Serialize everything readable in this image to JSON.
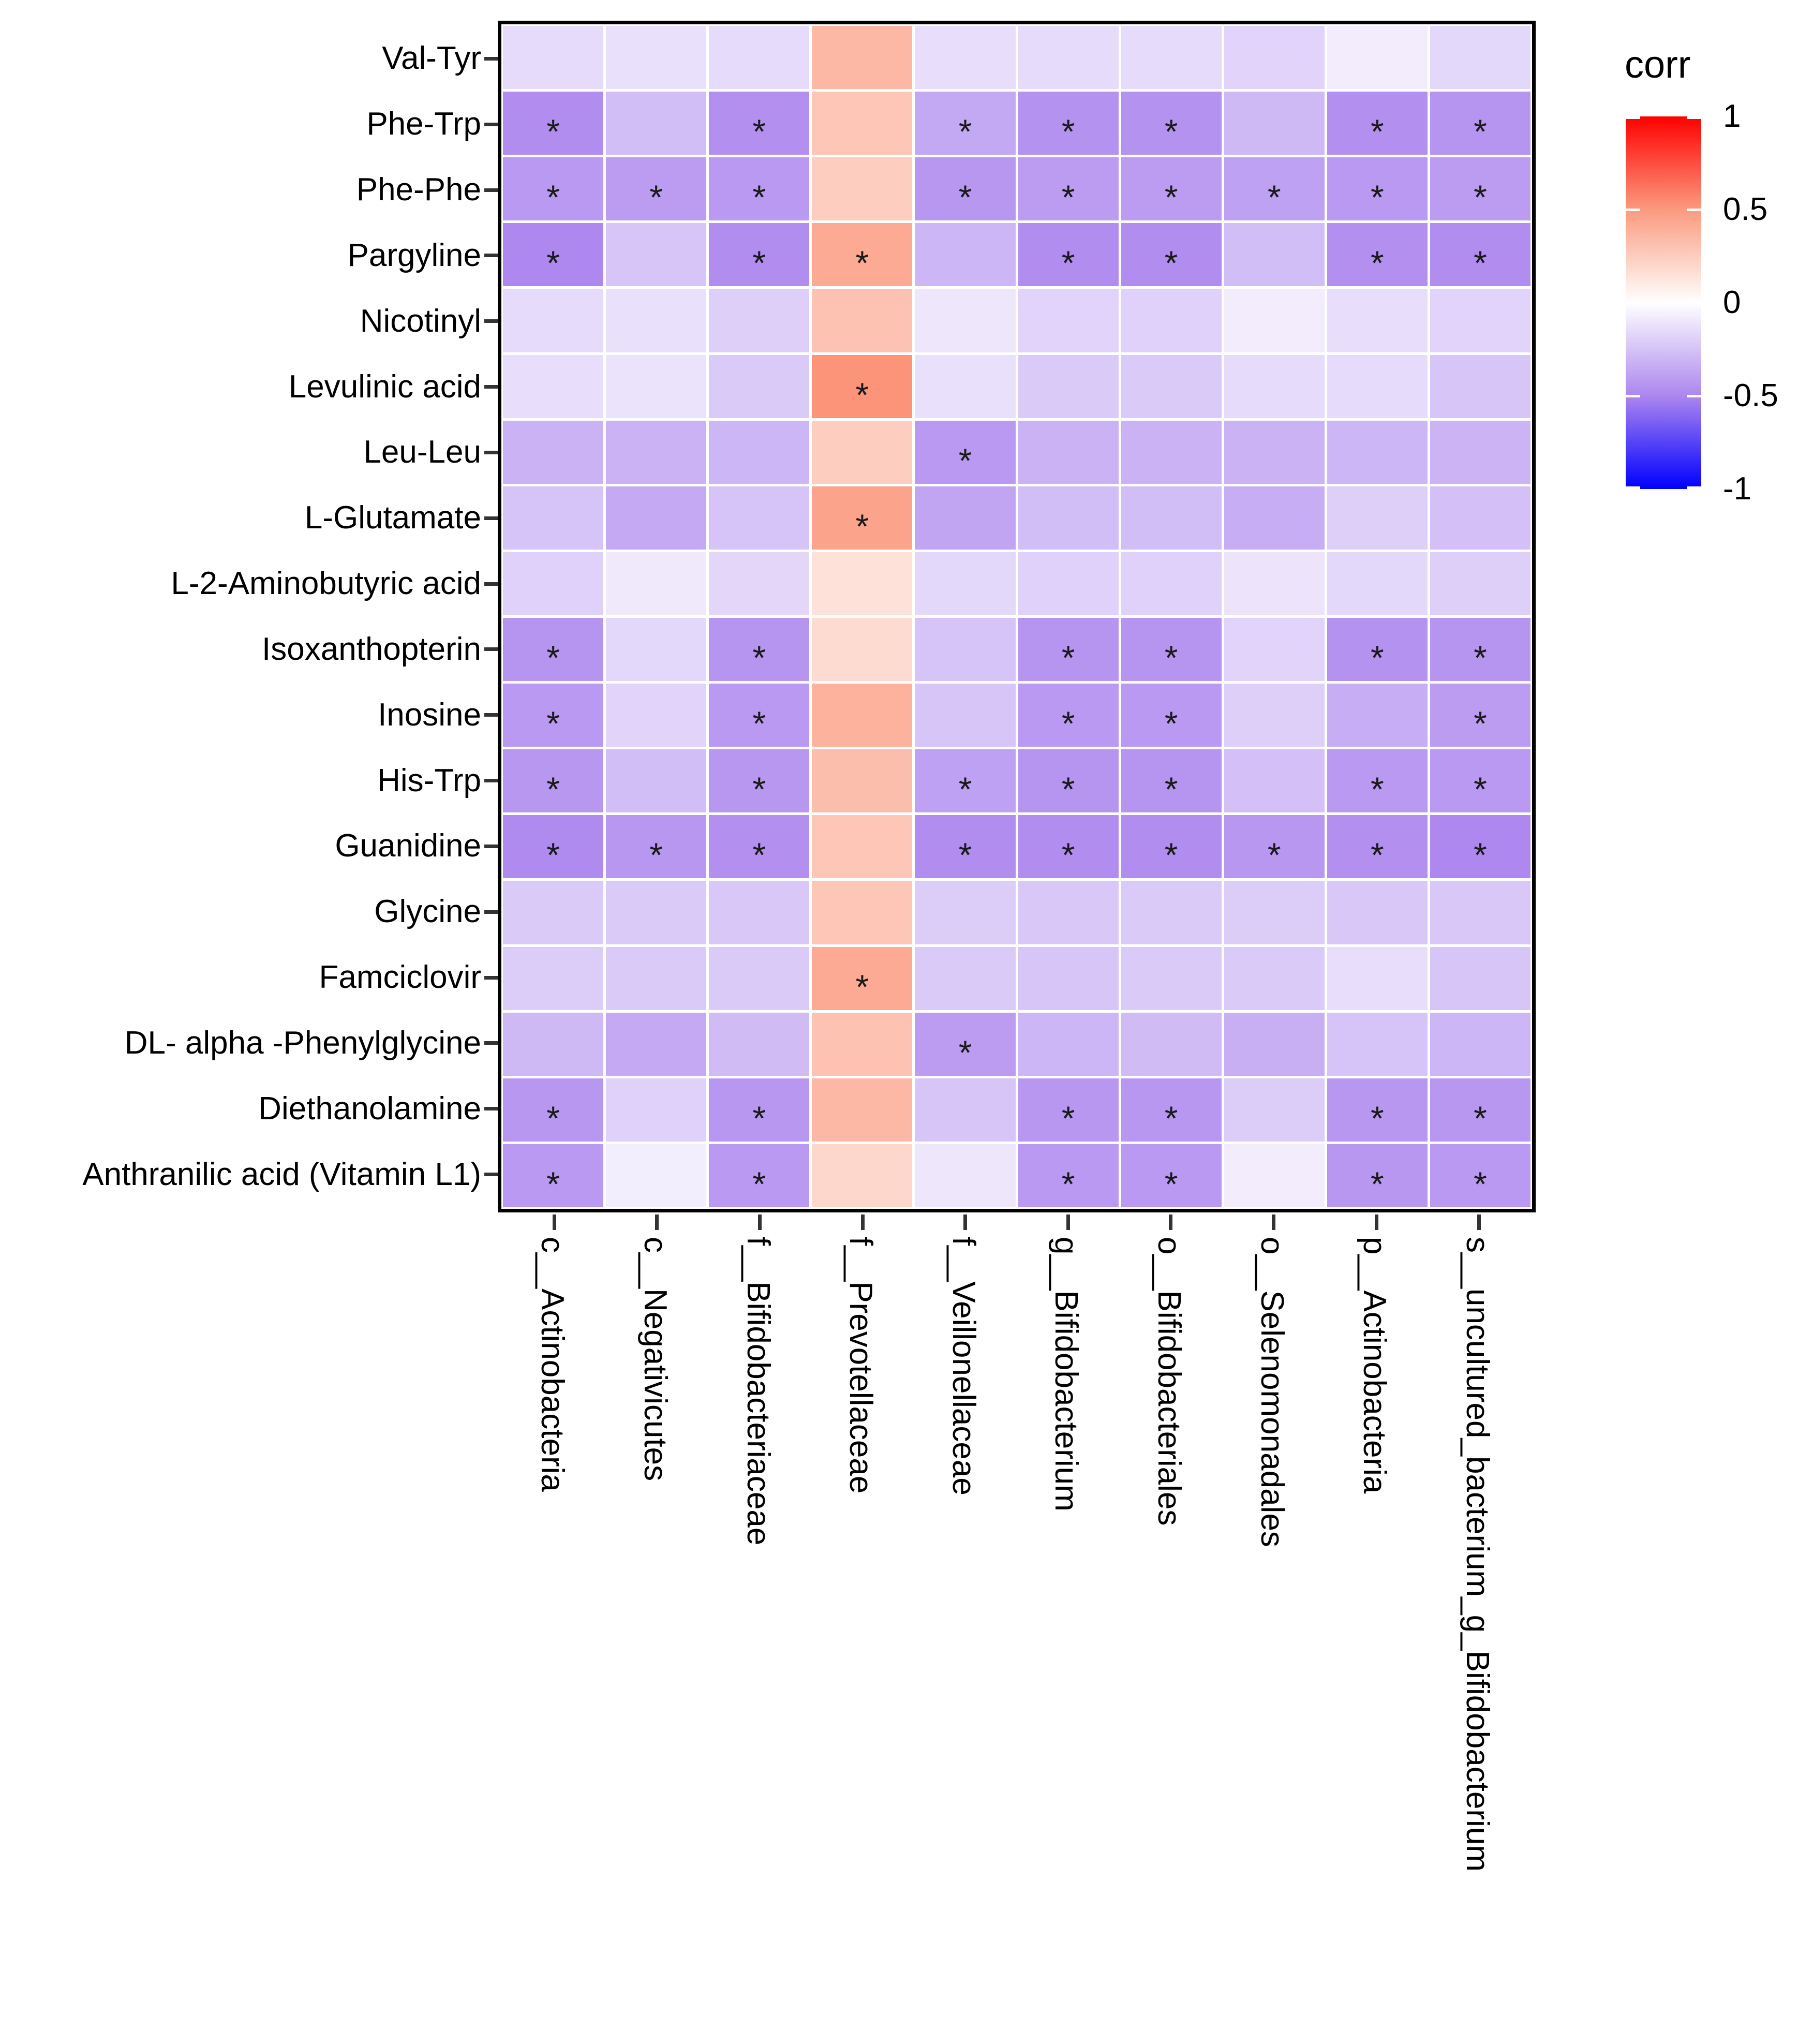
{
  "legend": {
    "title": "corr",
    "tick_labels": [
      "1",
      "0.5",
      "0",
      "-0.5",
      "-1"
    ],
    "tick_values": [
      1,
      0.5,
      0,
      -0.5,
      -1
    ]
  },
  "significance_marker": "*",
  "colors": {
    "scale_stops": [
      {
        "value": -1,
        "color": "#0000FF"
      },
      {
        "value": -0.5,
        "color": "#AC86EE"
      },
      {
        "value": 0,
        "color": "#FFFFFF"
      },
      {
        "value": 0.5,
        "color": "#FB9A7E"
      },
      {
        "value": 1,
        "color": "#FF0000"
      }
    ],
    "axis_tick": "#333333",
    "panel_border": "#000000",
    "text": "#000000",
    "star": "#1A1A1A"
  },
  "chart_data": {
    "type": "heatmap",
    "title": "",
    "legend_title": "corr",
    "legend_position": "right",
    "value_domain": [
      -1,
      1
    ],
    "rows": [
      "Val-Tyr",
      "Phe-Trp",
      "Phe-Phe",
      "Pargyline",
      "Nicotinyl",
      "Levulinic acid",
      "Leu-Leu",
      "L-Glutamate",
      "L-2-Aminobutyric acid",
      "Isoxanthopterin",
      "Inosine",
      "His-Trp",
      "Guanidine",
      "Glycine",
      "Famciclovir",
      "DL- alpha -Phenylglycine",
      "Diethanolamine",
      "Anthranilic acid (Vitamin L1)"
    ],
    "columns": [
      "c__Actinobacteria",
      "c__Negativicutes",
      "f__Bifidobacteriaceae",
      "f__Prevotellaceae",
      "f__Veillonellaceae",
      "g__Bifidobacterium",
      "o__Bifidobacteriales",
      "o__Selenomonadales",
      "p__Actinobacteria",
      "s__uncultured_bacterium_g_Bifidobacterium"
    ],
    "values": [
      [
        -0.15,
        -0.13,
        -0.15,
        0.35,
        -0.14,
        -0.15,
        -0.15,
        -0.18,
        -0.08,
        -0.16
      ],
      [
        -0.47,
        -0.27,
        -0.46,
        0.28,
        -0.36,
        -0.45,
        -0.45,
        -0.29,
        -0.46,
        -0.44
      ],
      [
        -0.42,
        -0.41,
        -0.42,
        0.25,
        -0.43,
        -0.41,
        -0.41,
        -0.39,
        -0.42,
        -0.41
      ],
      [
        -0.49,
        -0.24,
        -0.47,
        0.42,
        -0.3,
        -0.47,
        -0.47,
        -0.27,
        -0.46,
        -0.47
      ],
      [
        -0.15,
        -0.13,
        -0.2,
        0.3,
        -0.1,
        -0.18,
        -0.19,
        -0.08,
        -0.14,
        -0.18
      ],
      [
        -0.14,
        -0.12,
        -0.22,
        0.52,
        -0.13,
        -0.22,
        -0.22,
        -0.15,
        -0.15,
        -0.24
      ],
      [
        -0.32,
        -0.32,
        -0.3,
        0.25,
        -0.42,
        -0.32,
        -0.32,
        -0.32,
        -0.3,
        -0.31
      ],
      [
        -0.25,
        -0.35,
        -0.25,
        0.45,
        -0.37,
        -0.27,
        -0.27,
        -0.34,
        -0.2,
        -0.26
      ],
      [
        -0.19,
        -0.09,
        -0.17,
        0.15,
        -0.16,
        -0.19,
        -0.19,
        -0.11,
        -0.16,
        -0.2
      ],
      [
        -0.44,
        -0.16,
        -0.44,
        0.18,
        -0.25,
        -0.44,
        -0.44,
        -0.18,
        -0.45,
        -0.44
      ],
      [
        -0.42,
        -0.18,
        -0.42,
        0.38,
        -0.24,
        -0.42,
        -0.42,
        -0.2,
        -0.34,
        -0.41
      ],
      [
        -0.43,
        -0.27,
        -0.43,
        0.32,
        -0.39,
        -0.44,
        -0.44,
        -0.26,
        -0.42,
        -0.42
      ],
      [
        -0.48,
        -0.43,
        -0.46,
        0.28,
        -0.47,
        -0.47,
        -0.47,
        -0.43,
        -0.46,
        -0.49
      ],
      [
        -0.22,
        -0.22,
        -0.23,
        0.28,
        -0.21,
        -0.23,
        -0.22,
        -0.21,
        -0.23,
        -0.23
      ],
      [
        -0.21,
        -0.22,
        -0.22,
        0.42,
        -0.22,
        -0.24,
        -0.22,
        -0.22,
        -0.14,
        -0.24
      ],
      [
        -0.29,
        -0.35,
        -0.28,
        0.3,
        -0.41,
        -0.3,
        -0.28,
        -0.33,
        -0.25,
        -0.3
      ],
      [
        -0.43,
        -0.19,
        -0.43,
        0.35,
        -0.24,
        -0.43,
        -0.43,
        -0.21,
        -0.43,
        -0.43
      ],
      [
        -0.42,
        -0.07,
        -0.42,
        0.2,
        -0.1,
        -0.42,
        -0.42,
        -0.08,
        -0.43,
        -0.42
      ]
    ],
    "significant_cols_by_row": [
      [],
      [
        0,
        2,
        4,
        5,
        6,
        8,
        9
      ],
      [
        0,
        1,
        2,
        4,
        5,
        6,
        7,
        8,
        9
      ],
      [
        0,
        2,
        3,
        5,
        6,
        8,
        9
      ],
      [],
      [
        3
      ],
      [
        4
      ],
      [
        3
      ],
      [],
      [
        0,
        2,
        5,
        6,
        8,
        9
      ],
      [
        0,
        2,
        5,
        6,
        9
      ],
      [
        0,
        2,
        4,
        5,
        6,
        8,
        9
      ],
      [
        0,
        1,
        2,
        4,
        5,
        6,
        7,
        8,
        9
      ],
      [],
      [
        3
      ],
      [
        4
      ],
      [
        0,
        2,
        5,
        6,
        8,
        9
      ],
      [
        0,
        2,
        5,
        6,
        8,
        9
      ]
    ]
  }
}
